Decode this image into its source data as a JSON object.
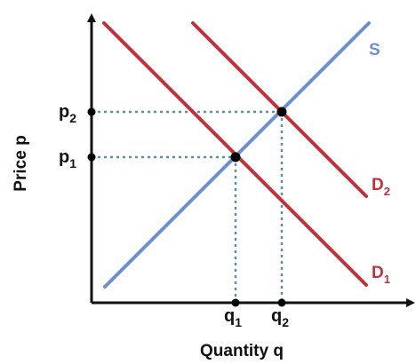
{
  "diagram": {
    "x_axis_label": "Quantity q",
    "y_axis_label": "Price p",
    "curves": {
      "supply": {
        "label": "S",
        "color": "#6e8fd4"
      },
      "demand_1": {
        "label": "D",
        "subscript": "1",
        "color": "#c0313a"
      },
      "demand_2": {
        "label": "D",
        "subscript": "2",
        "color": "#c0313a"
      }
    },
    "price_ticks": {
      "p1": {
        "base": "p",
        "sub": "1"
      },
      "p2": {
        "base": "p",
        "sub": "2"
      }
    },
    "quantity_ticks": {
      "q1": {
        "base": "q",
        "sub": "1"
      },
      "q2": {
        "base": "q",
        "sub": "2"
      }
    },
    "colors": {
      "axis": "#111111",
      "guide_lines": "#5b8fa8",
      "points": "#000000"
    }
  }
}
